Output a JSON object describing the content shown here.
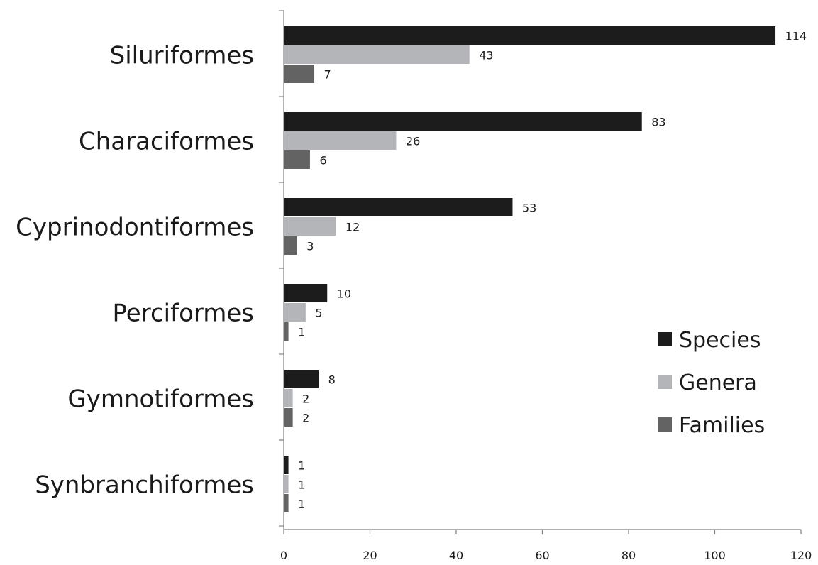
{
  "chart_data": {
    "type": "bar",
    "orientation": "horizontal",
    "categories": [
      "Siluriformes",
      "Characiformes",
      "Cyprinodontiformes",
      "Perciformes",
      "Gymnotiformes",
      "Synbranchiformes"
    ],
    "series": [
      {
        "name": "Species",
        "color": "#1c1c1c",
        "values": [
          114,
          83,
          53,
          10,
          8,
          1
        ]
      },
      {
        "name": "Genera",
        "color": "#b4b5b9",
        "values": [
          43,
          26,
          12,
          5,
          2,
          1
        ]
      },
      {
        "name": "Families",
        "color": "#636363",
        "values": [
          7,
          6,
          3,
          1,
          2,
          1
        ]
      }
    ],
    "xlim": [
      0,
      120
    ],
    "xticks": [
      0,
      20,
      40,
      60,
      80,
      100,
      120
    ],
    "title": "",
    "xlabel": "",
    "ylabel": "",
    "grid": false,
    "legend_position": "bottom-right",
    "data_labels": true
  }
}
